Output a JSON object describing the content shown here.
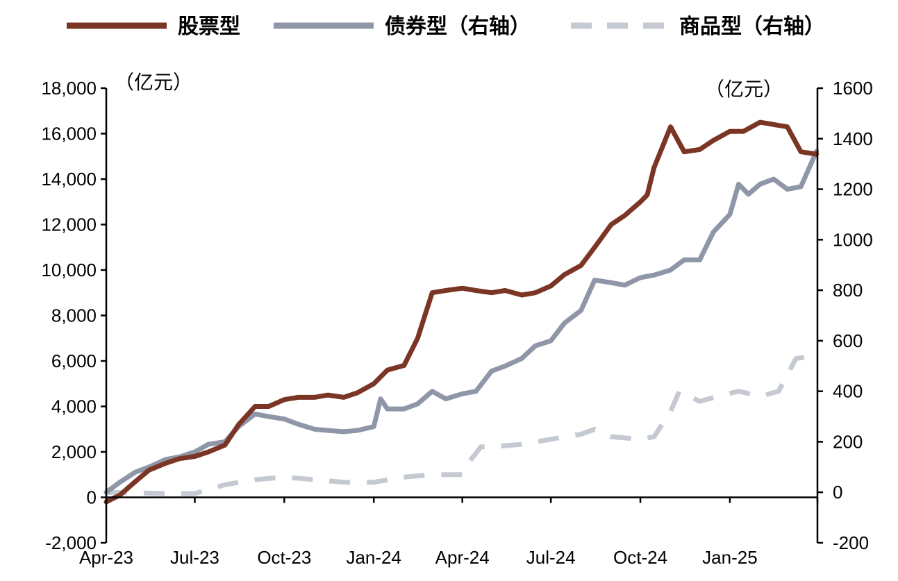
{
  "chart_data": {
    "type": "line",
    "legend": {
      "placement": "top"
    },
    "left_axis": {
      "unit": "（亿元）",
      "ylim": [
        -2000,
        18000
      ],
      "ticks": [
        "-2,000",
        "0",
        "2,000",
        "4,000",
        "6,000",
        "8,000",
        "10,000",
        "12,000",
        "14,000",
        "16,000",
        "18,000"
      ]
    },
    "right_axis": {
      "unit": "（亿元）",
      "ylim": [
        -200,
        1600
      ],
      "ticks": [
        "-200",
        "0",
        "200",
        "400",
        "600",
        "800",
        "1000",
        "1200",
        "1400",
        "1600"
      ]
    },
    "x_axis": {
      "ticks": [
        "Apr-23",
        "Jul-23",
        "Oct-23",
        "Jan-24",
        "Apr-24",
        "Jul-24",
        "Oct-24",
        "Jan-25"
      ]
    },
    "grid": false,
    "series": [
      {
        "name": "股票型",
        "axis": "left",
        "color": "#7b3524",
        "style": "solid",
        "x": [
          "2023-04-01",
          "2023-04-15",
          "2023-05-01",
          "2023-05-15",
          "2023-06-01",
          "2023-06-15",
          "2023-07-01",
          "2023-07-15",
          "2023-08-01",
          "2023-08-15",
          "2023-09-01",
          "2023-09-15",
          "2023-10-01",
          "2023-10-15",
          "2023-11-01",
          "2023-11-15",
          "2023-12-01",
          "2023-12-15",
          "2024-01-01",
          "2024-01-15",
          "2024-02-01",
          "2024-02-15",
          "2024-03-01",
          "2024-03-15",
          "2024-04-01",
          "2024-04-15",
          "2024-05-01",
          "2024-05-15",
          "2024-06-01",
          "2024-06-15",
          "2024-07-01",
          "2024-07-15",
          "2024-08-01",
          "2024-08-15",
          "2024-09-01",
          "2024-09-15",
          "2024-10-01",
          "2024-10-08",
          "2024-10-15",
          "2024-11-01",
          "2024-11-15",
          "2024-12-01",
          "2024-12-15",
          "2025-01-01",
          "2025-01-15",
          "2025-02-01",
          "2025-02-15",
          "2025-03-01",
          "2025-03-15",
          "2025-03-31"
        ],
        "values": [
          -200,
          100,
          700,
          1200,
          1500,
          1700,
          1800,
          2000,
          2300,
          3200,
          4000,
          4000,
          4300,
          4400,
          4400,
          4500,
          4400,
          4600,
          5000,
          5600,
          5800,
          7000,
          9000,
          9100,
          9200,
          9100,
          9000,
          9100,
          8900,
          9000,
          9300,
          9800,
          10200,
          11000,
          12000,
          12400,
          13000,
          13300,
          14500,
          16300,
          15200,
          15300,
          15700,
          16100,
          16100,
          16500,
          16400,
          16300,
          15200,
          15100
        ]
      },
      {
        "name": "债券型（右轴）",
        "axis": "right",
        "color": "#8f96a7",
        "style": "solid",
        "x": [
          "2023-04-01",
          "2023-04-15",
          "2023-05-01",
          "2023-05-15",
          "2023-06-01",
          "2023-06-15",
          "2023-07-01",
          "2023-07-15",
          "2023-08-01",
          "2023-08-15",
          "2023-09-01",
          "2023-09-15",
          "2023-10-01",
          "2023-10-15",
          "2023-11-01",
          "2023-11-15",
          "2023-12-01",
          "2023-12-15",
          "2024-01-01",
          "2024-01-08",
          "2024-01-15",
          "2024-02-01",
          "2024-02-15",
          "2024-03-01",
          "2024-03-15",
          "2024-04-01",
          "2024-04-15",
          "2024-05-01",
          "2024-05-15",
          "2024-06-01",
          "2024-06-15",
          "2024-07-01",
          "2024-07-15",
          "2024-08-01",
          "2024-08-15",
          "2024-09-01",
          "2024-09-15",
          "2024-10-01",
          "2024-10-15",
          "2024-11-01",
          "2024-11-15",
          "2024-12-01",
          "2024-12-15",
          "2025-01-01",
          "2025-01-10",
          "2025-01-20",
          "2025-02-01",
          "2025-02-15",
          "2025-03-01",
          "2025-03-15",
          "2025-03-31"
        ],
        "values": [
          0,
          40,
          80,
          100,
          130,
          140,
          160,
          190,
          200,
          260,
          310,
          300,
          290,
          270,
          250,
          245,
          240,
          245,
          260,
          370,
          330,
          330,
          350,
          400,
          370,
          390,
          400,
          480,
          500,
          530,
          580,
          600,
          670,
          720,
          840,
          830,
          820,
          850,
          860,
          880,
          920,
          920,
          1030,
          1100,
          1220,
          1180,
          1220,
          1240,
          1200,
          1210,
          1350
        ]
      },
      {
        "name": "商品型（右轴）",
        "axis": "right",
        "color": "#c5c9d2",
        "style": "dashed",
        "x": [
          "2023-04-01",
          "2023-05-01",
          "2023-06-01",
          "2023-07-01",
          "2023-08-01",
          "2023-09-01",
          "2023-10-01",
          "2023-11-01",
          "2023-12-01",
          "2024-01-01",
          "2024-02-01",
          "2024-03-01",
          "2024-04-01",
          "2024-04-10",
          "2024-04-20",
          "2024-05-01",
          "2024-06-01",
          "2024-07-01",
          "2024-08-01",
          "2024-08-15",
          "2024-09-01",
          "2024-10-01",
          "2024-10-15",
          "2024-11-01",
          "2024-11-10",
          "2024-12-01",
          "2024-12-20",
          "2025-01-10",
          "2025-02-01",
          "2025-02-20",
          "2025-03-10",
          "2025-03-31"
        ],
        "values": [
          0,
          -2,
          -5,
          -5,
          30,
          50,
          60,
          50,
          40,
          40,
          60,
          70,
          70,
          130,
          180,
          180,
          190,
          210,
          230,
          250,
          220,
          210,
          220,
          320,
          400,
          360,
          380,
          400,
          380,
          400,
          530,
          540
        ]
      }
    ]
  }
}
